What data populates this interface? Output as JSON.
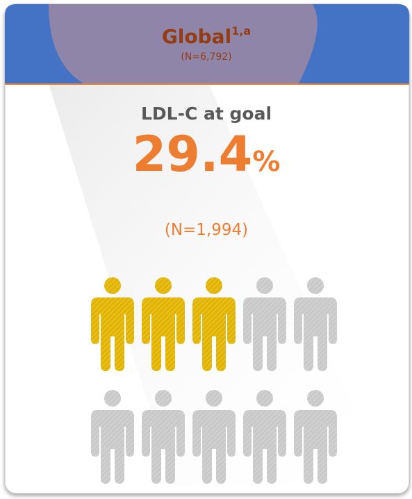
{
  "header": {
    "title": "Global",
    "superscript": "1,a",
    "subtitle": "(N=6,792)"
  },
  "metric": {
    "label": "LDL-C at goal",
    "value": "29.4",
    "unit": "%",
    "count": "(N=1,994)"
  },
  "pictogram": {
    "total": 10,
    "highlighted": 3,
    "per_row": 5,
    "highlight_color": "#e2b400",
    "base_color": "#c9c9c9"
  }
}
